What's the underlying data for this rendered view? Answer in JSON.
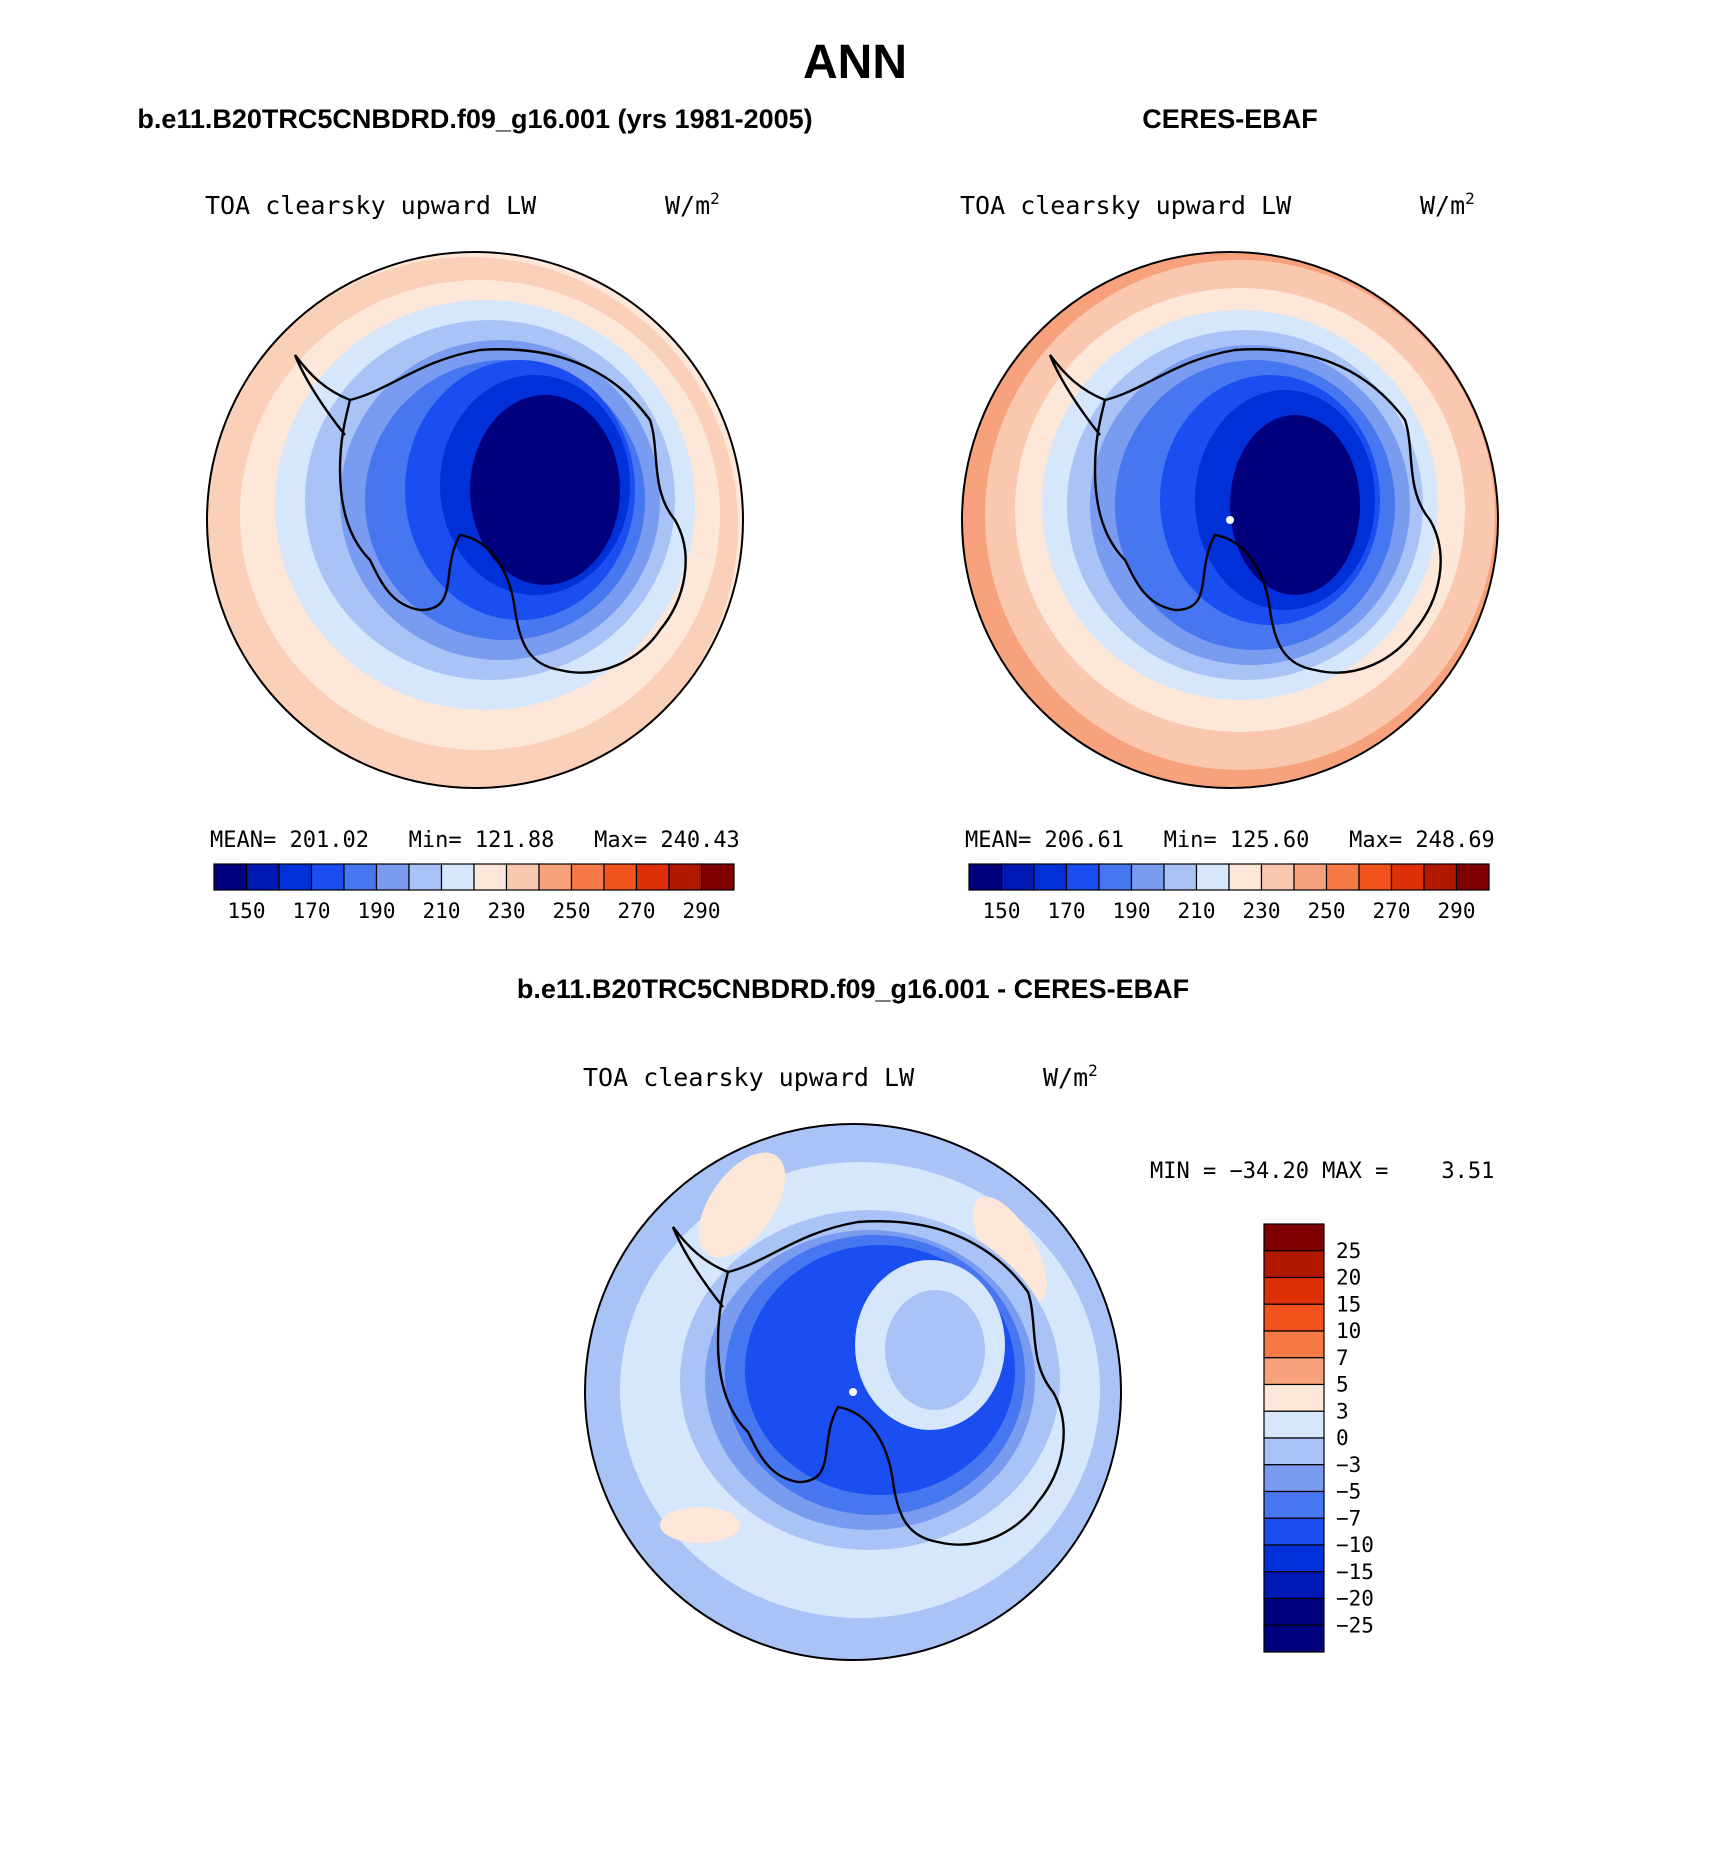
{
  "page_title": "ANN",
  "panels": [
    {
      "heading": "b.e11.B20TRC5CNBDRD.f09_g16.001 (yrs 1981-2005)",
      "field_name": "TOA clearsky upward LW",
      "units_base": "W/m",
      "units_exp": "2",
      "stats": "MEAN= 201.02   Min= 121.88   Max= 240.43",
      "colorbar_ticks": [
        "150",
        "170",
        "190",
        "210",
        "230",
        "250",
        "270",
        "290"
      ]
    },
    {
      "heading": "CERES-EBAF",
      "field_name": "TOA clearsky upward LW",
      "units_base": "W/m",
      "units_exp": "2",
      "stats": "MEAN= 206.61   Min= 125.60   Max= 248.69",
      "colorbar_ticks": [
        "150",
        "170",
        "190",
        "210",
        "230",
        "250",
        "270",
        "290"
      ]
    },
    {
      "heading": "b.e11.B20TRC5CNBDRD.f09_g16.001 - CERES-EBAF",
      "field_name": "TOA clearsky upward LW",
      "units_base": "W/m",
      "units_exp": "2",
      "stats": "MIN = −34.20 MAX =    3.51",
      "colorbar_ticks": [
        "25",
        "20",
        "15",
        "10",
        "7",
        "5",
        "3",
        "0",
        "−3",
        "−5",
        "−7",
        "−10",
        "−15",
        "−20",
        "−25"
      ]
    }
  ],
  "palette": {
    "absolute": [
      "#00007f",
      "#0018b4",
      "#0030d8",
      "#1a4ef0",
      "#4676f0",
      "#7a9cf0",
      "#a9c3f6",
      "#d6e7fb",
      "#fde7d8",
      "#f9c8ae",
      "#f7a27d",
      "#f57a45",
      "#f2521c",
      "#dd3008",
      "#b21800",
      "#7f0000"
    ],
    "difference": [
      "#7f0000",
      "#b21800",
      "#dd3008",
      "#f2521c",
      "#f57a45",
      "#f7a27d",
      "#fde7d8",
      "#d6e7fb",
      "#a9c3f6",
      "#7a9cf0",
      "#4676f0",
      "#1a4ef0",
      "#0030d8",
      "#0018b4",
      "#00007f"
    ]
  }
}
